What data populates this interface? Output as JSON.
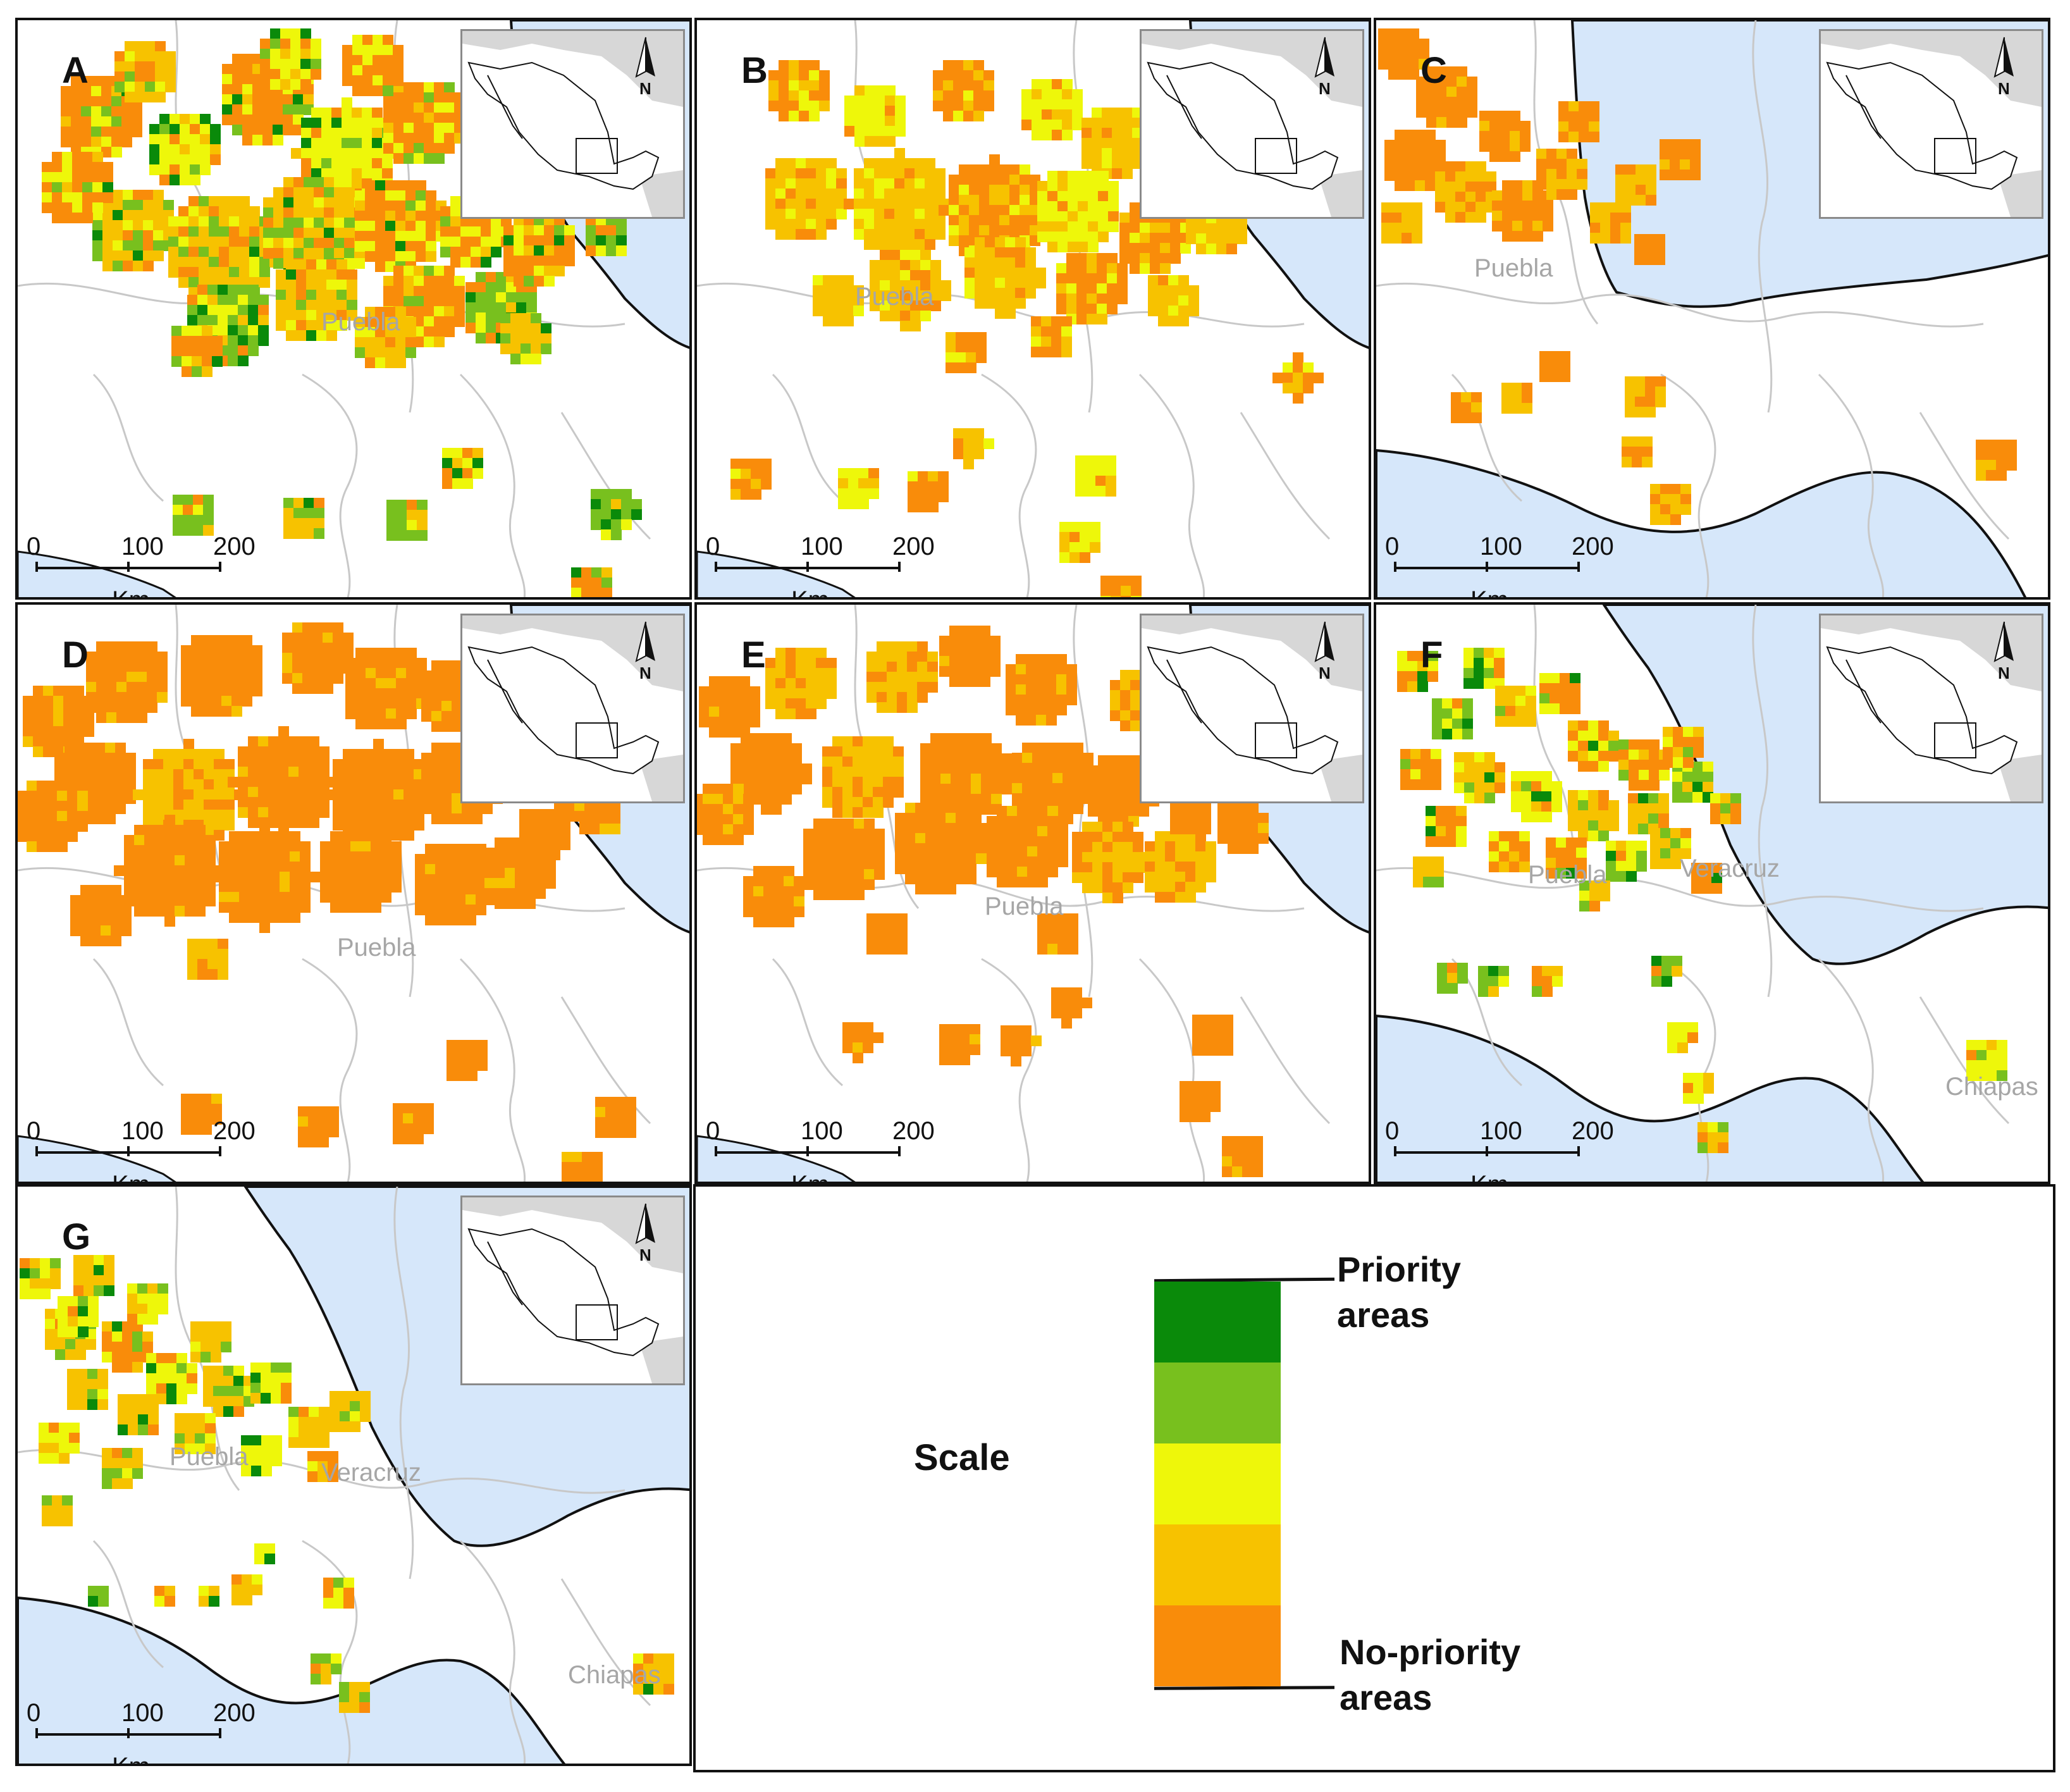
{
  "figure": {
    "panels": [
      {
        "letter": "A",
        "labels": [
          "Puebla"
        ],
        "pattern": "mixed"
      },
      {
        "letter": "B",
        "labels": [
          "Puebla"
        ],
        "pattern": "light"
      },
      {
        "letter": "C",
        "labels": [
          "Puebla"
        ],
        "pattern": "orange-north"
      },
      {
        "letter": "D",
        "labels": [
          "Puebla"
        ],
        "pattern": "solid"
      },
      {
        "letter": "E",
        "labels": [
          "Puebla"
        ],
        "pattern": "solid"
      },
      {
        "letter": "F",
        "labels": [
          "Puebla",
          "Veracruz",
          "Chiapas"
        ],
        "pattern": "speckled"
      },
      {
        "letter": "G",
        "labels": [
          "Puebla",
          "Veracruz",
          "Chiapas"
        ],
        "pattern": "speckled"
      }
    ],
    "scale_bar": {
      "ticks": [
        "0",
        "100",
        "200"
      ],
      "unit": "Km"
    },
    "north_arrow": "N",
    "legend": {
      "title": "Scale",
      "top_label": [
        "Priority",
        "areas"
      ],
      "bottom_label": [
        "No-priority",
        "areas"
      ],
      "colors": [
        "#0a8a0a",
        "#78c01e",
        "#eef70a",
        "#f7c200",
        "#f98c0a"
      ]
    },
    "map_colors": {
      "sea": "#d6e7fa",
      "land": "#ffffff",
      "neighbor": "#d7d7d7",
      "borders": "#c8c8c8"
    },
    "icons": [
      "north-arrow-icon",
      "mexico-locator-icon"
    ]
  }
}
